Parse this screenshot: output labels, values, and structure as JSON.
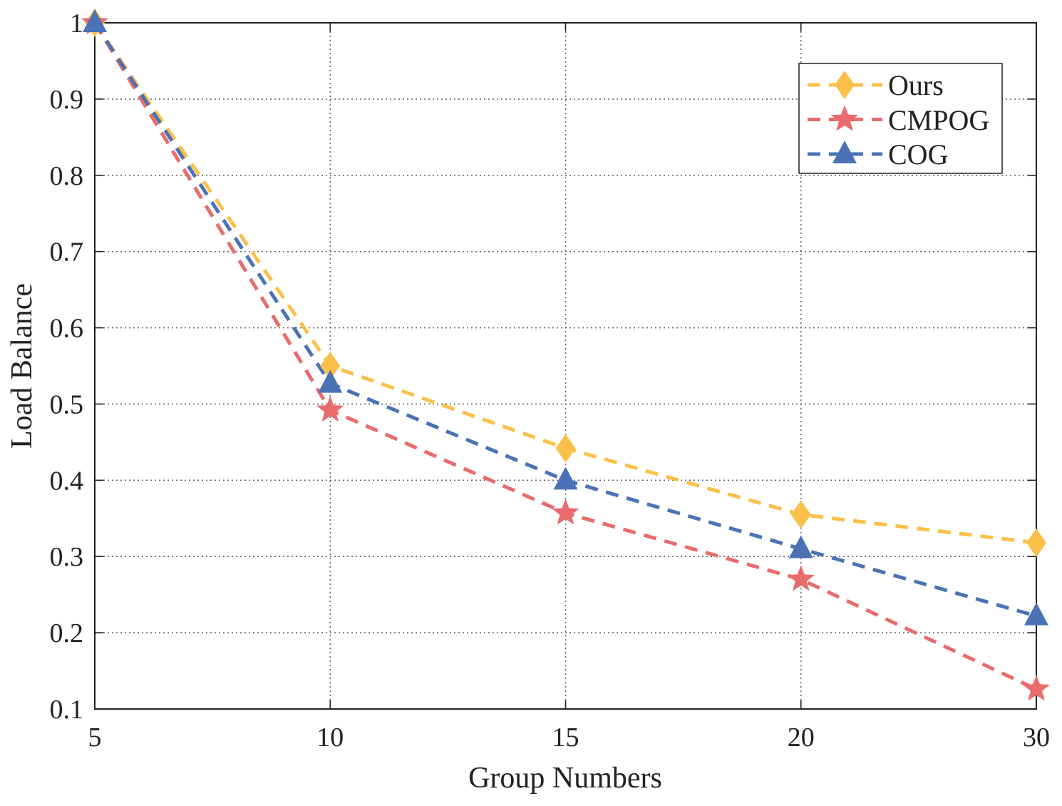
{
  "chart_data": {
    "type": "line",
    "title": "",
    "xlabel": "Group Numbers",
    "ylabel": "Load Balance",
    "categories": [
      "5",
      "10",
      "15",
      "20",
      "30"
    ],
    "ylim": [
      0.1,
      1.0
    ],
    "yticks": [
      "0.1",
      "0.2",
      "0.3",
      "0.4",
      "0.5",
      "0.6",
      "0.7",
      "0.8",
      "0.9",
      "1"
    ],
    "grid": true,
    "legend_position": "top-right",
    "series": [
      {
        "name": "Ours",
        "marker": "diamond",
        "color": "#FBC04A",
        "values": [
          1.0,
          0.55,
          0.442,
          0.355,
          0.318
        ]
      },
      {
        "name": "CMPOG",
        "marker": "star",
        "color": "#E96B6B",
        "values": [
          1.0,
          0.492,
          0.357,
          0.27,
          0.126
        ]
      },
      {
        "name": "COG",
        "marker": "triangle",
        "color": "#4A72B5",
        "values": [
          1.0,
          0.527,
          0.4,
          0.31,
          0.222
        ]
      }
    ]
  }
}
